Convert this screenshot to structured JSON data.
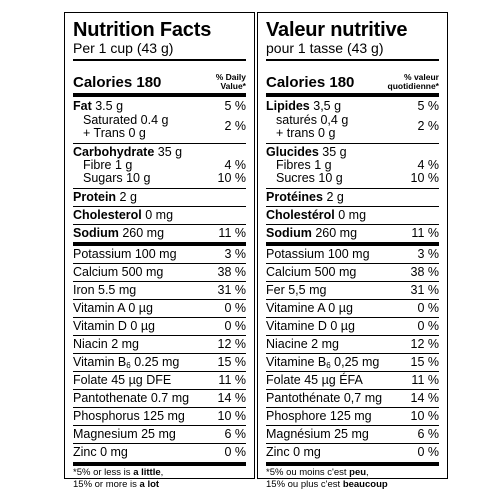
{
  "english": {
    "title": "Nutrition Facts",
    "serving": "Per 1 cup (43 g)",
    "calories": "Calories 180",
    "dv_header": "% Daily\nValue*",
    "fat": {
      "label": "Fat",
      "amount": "3.5 g",
      "pct": "5 %"
    },
    "saturated": "Saturated 0.4 g",
    "trans": "+ Trans 0 g",
    "sat_trans_pct": "2 %",
    "carb": {
      "label": "Carbohydrate",
      "amount": "35 g"
    },
    "fibre": {
      "text": "Fibre 1 g",
      "pct": "4 %"
    },
    "sugars": {
      "text": "Sugars 10 g",
      "pct": "10 %"
    },
    "protein": {
      "label": "Protein",
      "amount": "2 g"
    },
    "cholesterol": {
      "label": "Cholesterol",
      "amount": "0 mg"
    },
    "sodium": {
      "label": "Sodium",
      "amount": "260 mg",
      "pct": "11 %"
    },
    "micros": [
      {
        "text": "Potassium 100 mg",
        "pct": "3 %"
      },
      {
        "text": "Calcium 500 mg",
        "pct": "38 %"
      },
      {
        "text": "Iron 5.5 mg",
        "pct": "31 %"
      },
      {
        "text": "Vitamin A 0 µg",
        "pct": "0 %"
      },
      {
        "text": "Vitamin D 0 µg",
        "pct": "0 %"
      },
      {
        "text": "Niacin 2 mg",
        "pct": "12 %"
      },
      {
        "text": "Vitamin B6 0.25 mg",
        "pct": "15 %"
      },
      {
        "text": "Folate 45 µg DFE",
        "pct": "11 %"
      },
      {
        "text": "Pantothenate 0.7 mg",
        "pct": "14 %"
      },
      {
        "text": "Phosphorus 125 mg",
        "pct": "10 %"
      },
      {
        "text": "Magnesium 25 mg",
        "pct": "6 %"
      },
      {
        "text": "Zinc 0 mg",
        "pct": "0 %"
      }
    ],
    "footnote": {
      "pre": "*5% or less is ",
      "b1": "a little",
      "mid": ",\n15% or more is ",
      "b2": "a lot"
    }
  },
  "french": {
    "title": "Valeur nutritive",
    "serving": "pour 1 tasse (43 g)",
    "calories": "Calories 180",
    "dv_header": "% valeur\nquotidienne*",
    "fat": {
      "label": "Lipides",
      "amount": "3,5 g",
      "pct": "5 %"
    },
    "saturated": "saturés 0,4 g",
    "trans": "+ trans 0 g",
    "sat_trans_pct": "2 %",
    "carb": {
      "label": "Glucides",
      "amount": "35 g"
    },
    "fibre": {
      "text": "Fibres 1 g",
      "pct": "4 %"
    },
    "sugars": {
      "text": "Sucres 10 g",
      "pct": "10 %"
    },
    "protein": {
      "label": "Protéines",
      "amount": "2 g"
    },
    "cholesterol": {
      "label": "Cholestérol",
      "amount": "0 mg"
    },
    "sodium": {
      "label": "Sodium",
      "amount": "260 mg",
      "pct": "11 %"
    },
    "micros": [
      {
        "text": "Potassium 100 mg",
        "pct": "3 %"
      },
      {
        "text": "Calcium 500 mg",
        "pct": "38 %"
      },
      {
        "text": "Fer 5,5 mg",
        "pct": "31 %"
      },
      {
        "text": "Vitamine A 0 µg",
        "pct": "0 %"
      },
      {
        "text": "Vitamine D 0 µg",
        "pct": "0 %"
      },
      {
        "text": "Niacine 2 mg",
        "pct": "12 %"
      },
      {
        "text": "Vitamine B6 0,25 mg",
        "pct": "15 %"
      },
      {
        "text": "Folate 45 µg ÉFA",
        "pct": "11 %"
      },
      {
        "text": "Pantothénate 0,7 mg",
        "pct": "14 %"
      },
      {
        "text": "Phosphore 125 mg",
        "pct": "10 %"
      },
      {
        "text": "Magnésium 25 mg",
        "pct": "6 %"
      },
      {
        "text": "Zinc 0 mg",
        "pct": "0 %"
      }
    ],
    "footnote": {
      "pre": "*5% ou moins c'est ",
      "b1": "peu",
      "mid": ",\n15% ou plus c'est ",
      "b2": "beaucoup"
    }
  }
}
